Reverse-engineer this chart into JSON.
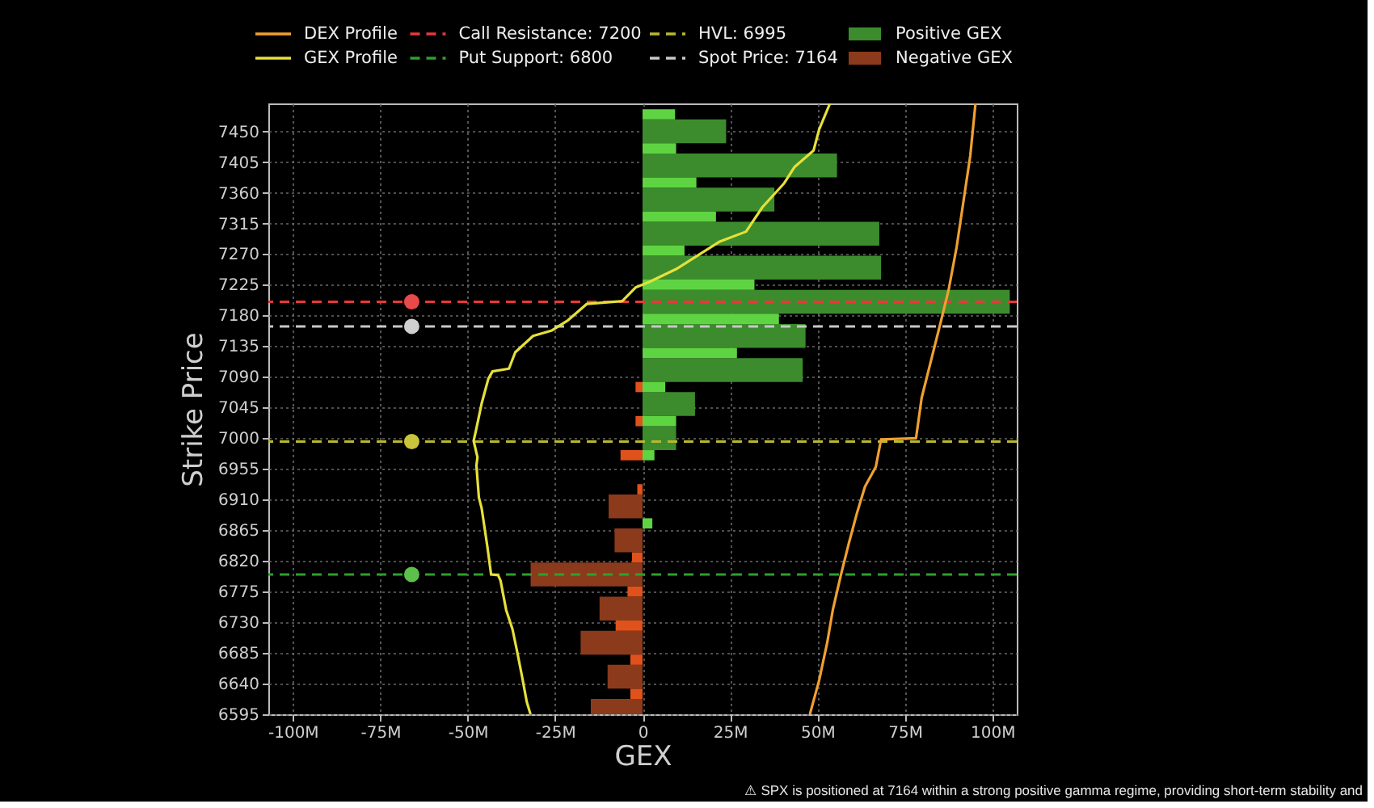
{
  "chart_data": {
    "type": "bar",
    "orientation": "horizontal",
    "xlabel": "GEX",
    "ylabel": "Strike Price",
    "xlim": [
      -107,
      107
    ],
    "xticks": [
      {
        "value": -100,
        "label": "-100M"
      },
      {
        "value": -75,
        "label": "-75M"
      },
      {
        "value": -50,
        "label": "-50M"
      },
      {
        "value": -25,
        "label": "-25M"
      },
      0,
      {
        "value": 25,
        "label": "25M"
      },
      {
        "value": 50,
        "label": "50M"
      },
      {
        "value": 75,
        "label": "75M"
      },
      {
        "value": 100,
        "label": "100M"
      }
    ],
    "ylim": [
      6595,
      7491
    ],
    "yticks": [
      6595,
      6640,
      6685,
      6730,
      6775,
      6820,
      6865,
      6910,
      6955,
      7000,
      7045,
      7090,
      7135,
      7180,
      7225,
      7270,
      7315,
      7360,
      7405,
      7450
    ],
    "grid": true,
    "legend": "top",
    "series": [
      {
        "name": "DEX Profile",
        "type": "line",
        "color": "#f0a030",
        "x": [
          6596,
          6645,
          6700,
          6748,
          6799,
          6846,
          6890,
          6929,
          6958,
          6998,
          7000,
          7059,
          7106,
          7169,
          7217,
          7280,
          7359,
          7414,
          7491
        ],
        "values": [
          47.9,
          50.5,
          52.8,
          54.4,
          56.7,
          59.0,
          61.3,
          63.6,
          66.7,
          68.2,
          78.2,
          79.8,
          82.1,
          85.2,
          87.5,
          89.8,
          92.1,
          93.7,
          95.2
        ]
      },
      {
        "name": "GEX Profile",
        "type": "line",
        "color": "#e6e03a",
        "x": [
          6596,
          6613,
          6649,
          6688,
          6720,
          6748,
          6791,
          6799,
          6800,
          6842,
          6897,
          6913,
          6960,
          6972,
          6996,
          7012,
          7051,
          7087,
          7098,
          7102,
          7126,
          7150,
          7158,
          7173,
          7197,
          7201,
          7221,
          7229,
          7248,
          7288,
          7303,
          7339,
          7374,
          7398,
          7422,
          7453,
          7491
        ],
        "values": [
          -32.1,
          -33.1,
          -34.4,
          -35.9,
          -37.2,
          -39.0,
          -40.6,
          -41.3,
          -43.3,
          -44.4,
          -46.0,
          -46.8,
          -47.5,
          -47.2,
          -48.3,
          -47.6,
          -46.0,
          -44.1,
          -42.9,
          -38.2,
          -36.4,
          -31.3,
          -25.9,
          -21.3,
          -15.9,
          -5.8,
          -2.0,
          1.9,
          9.6,
          21.9,
          29.6,
          34.3,
          40.5,
          43.5,
          48.9,
          50.5,
          53.6
        ]
      },
      {
        "name": "Positive GEX",
        "color": "#3c8c2e",
        "x": [
          7000,
          7050,
          7100,
          7150,
          7200,
          7250,
          7300,
          7350,
          7400,
          7450
        ],
        "values": [
          9.6,
          15.0,
          45.8,
          46.6,
          105.0,
          68.2,
          67.7,
          37.7,
          55.6,
          23.9
        ]
      },
      {
        "name": "Negative GEX",
        "color": "#8c3a1c",
        "x": [
          6600,
          6650,
          6700,
          6750,
          6800,
          6850,
          6900
        ],
        "values": [
          -14.8,
          -10.0,
          -17.7,
          -12.3,
          -32.0,
          -8.0,
          -9.7
        ]
      },
      {
        "color": "#5fd443",
        "x": [
          6875,
          6975,
          7025,
          7075,
          7125,
          7175,
          7225,
          7275,
          7325,
          7375,
          7425,
          7475
        ],
        "values": [
          2.8,
          3.4,
          9.6,
          6.5,
          27.0,
          39.0,
          32.0,
          12.0,
          21.0,
          15.4,
          9.6,
          9.3
        ]
      },
      {
        "color": "#e0521c",
        "x": [
          6625,
          6675,
          6725,
          6775,
          6825,
          6925,
          6975,
          7025,
          7075
        ],
        "values": [
          -3.5,
          -3.5,
          -7.7,
          -4.3,
          -3.0,
          -1.5,
          -6.3,
          -2.0,
          -2.0
        ]
      },
      {
        "type": "scatter",
        "colors": [
          "#e84a4a",
          "#cfcfcf",
          "#c9c43c",
          "#5cc04a"
        ],
        "x": [
          7200,
          7164,
          6995,
          6800
        ],
        "values": [
          -66,
          -66,
          -66,
          -66
        ]
      }
    ],
    "ref_lines": [
      {
        "axis": "y",
        "value": 7200,
        "label": "Call Resistance: 7200",
        "color": "#e8383a",
        "line_style": "dashed"
      },
      {
        "axis": "y",
        "value": 6800,
        "label": "Put Support: 6800",
        "color": "#2fa02f",
        "line_style": "dashed"
      },
      {
        "axis": "y",
        "value": 6995,
        "label": "HVL: 6995",
        "color": "#b8b830",
        "line_style": "dashed"
      },
      {
        "axis": "y",
        "value": 7164,
        "label": "Spot Price: 7164",
        "color": "#c8c8c8",
        "line_style": "dashed"
      }
    ],
    "annotations": [
      "⚠ SPX is positioned at 7164 within a strong positive gamma regime, providing short-term stability and"
    ]
  }
}
